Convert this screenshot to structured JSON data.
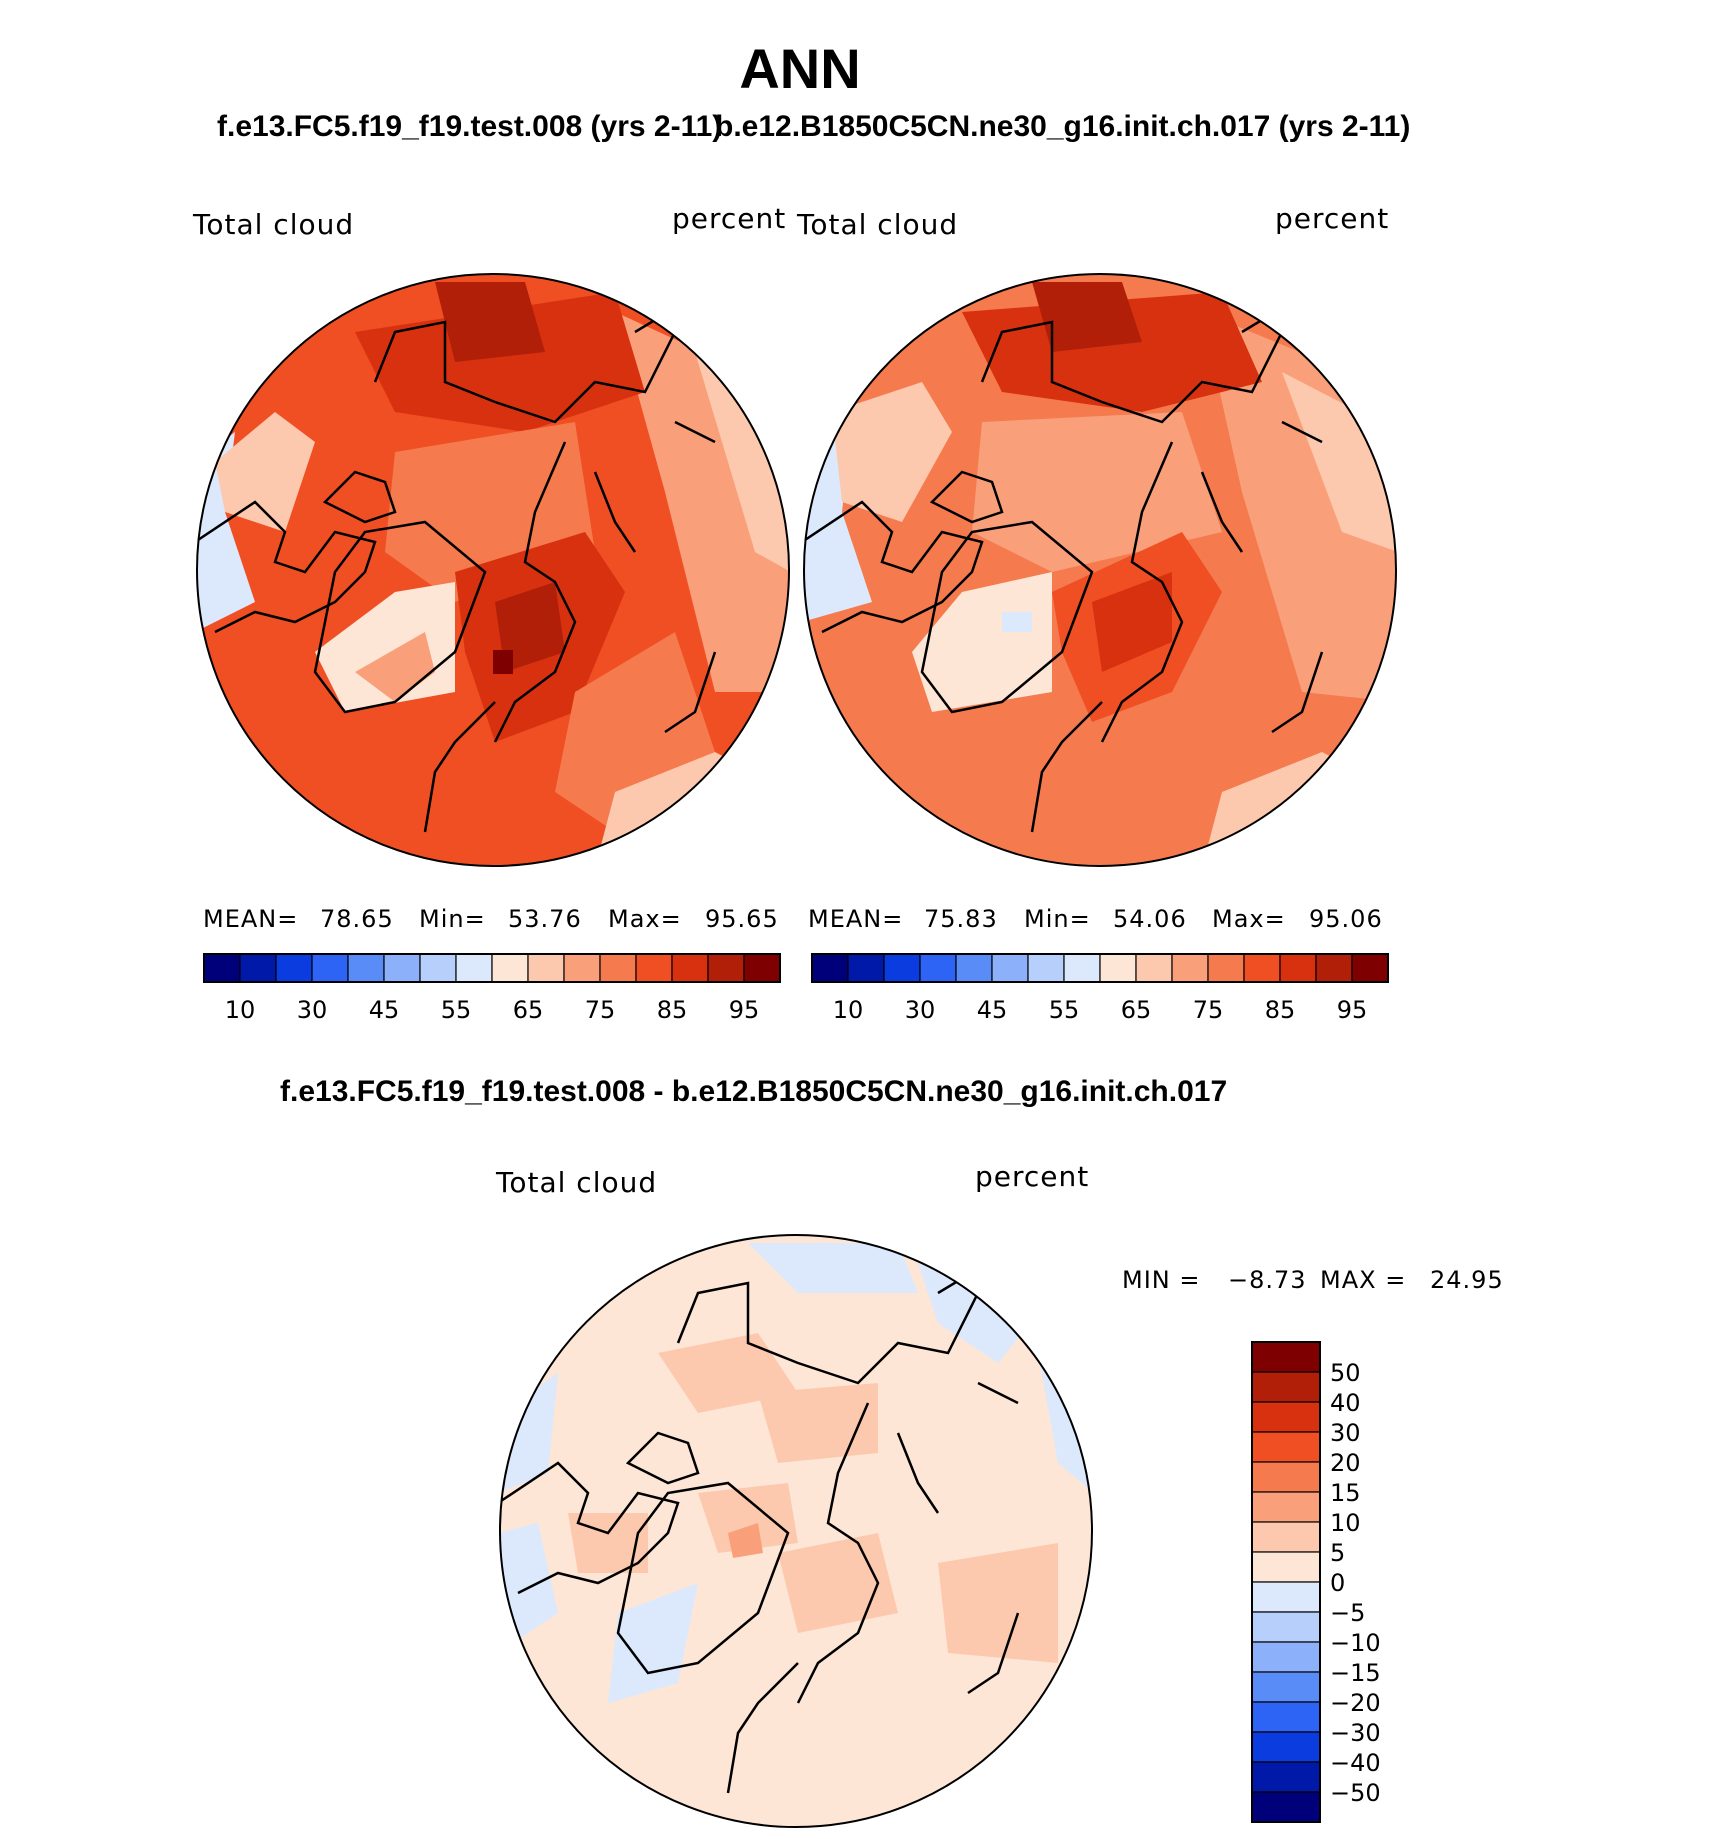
{
  "title": "ANN",
  "case1_header": "f.e13.FC5.f19_f19.test.008 (yrs 2-11)",
  "case2_header": "b.e12.B1850C5CN.ne30_g16.init.ch.017 (yrs 2-11)",
  "diff_header": "f.e13.FC5.f19_f19.test.008 - b.e12.B1850C5CN.ne30_g16.init.ch.017",
  "colors": {
    "abs_scale": [
      "#00007a",
      "#0019a8",
      "#0a3ce0",
      "#2d64f5",
      "#5a8cf8",
      "#8cb0fa",
      "#b7cffb",
      "#dce9fc",
      "#fde6d6",
      "#fcc9ae",
      "#f9a07a",
      "#f57a4e",
      "#f04e23",
      "#d8310f",
      "#b11f08",
      "#7f0000"
    ],
    "diff_scale": [
      "#00007a",
      "#0019a8",
      "#0a3ce0",
      "#2d64f5",
      "#5a8cf8",
      "#8cb0fa",
      "#b7cffb",
      "#dce9fc",
      "#fde6d6",
      "#fcc9ae",
      "#f9a07a",
      "#f57a4e",
      "#f04e23",
      "#d8310f",
      "#b11f08",
      "#7f0000"
    ]
  },
  "panels": [
    {
      "id": "case1",
      "variable": "Total cloud",
      "units": "percent",
      "mean_label": "MEAN=",
      "mean": "78.65",
      "min_label": "Min=",
      "min": "53.76",
      "max_label": "Max=",
      "max": "95.65"
    },
    {
      "id": "case2",
      "variable": "Total cloud",
      "units": "percent",
      "mean_label": "MEAN=",
      "mean": "75.83",
      "min_label": "Min=",
      "min": "54.06",
      "max_label": "Max=",
      "max": "95.06"
    }
  ],
  "diff_panel": {
    "variable": "Total cloud",
    "units": "percent",
    "min_label": "MIN =",
    "min": "−8.73",
    "max_label": "MAX =",
    "max": "24.95"
  },
  "chart_data": [
    {
      "type": "heatmap",
      "title": "f.e13.FC5.f19_f19.test.008 (yrs 2-11)",
      "variable": "Total cloud",
      "units": "percent",
      "projection": "north polar stereographic",
      "mean": 78.65,
      "min": 53.76,
      "max": 95.65,
      "colorbar_levels": [
        10,
        20,
        30,
        40,
        45,
        50,
        55,
        60,
        65,
        70,
        75,
        80,
        85,
        90,
        95
      ],
      "colorbar_tick_labels": [
        "10",
        "30",
        "45",
        "55",
        "65",
        "75",
        "85",
        "95"
      ]
    },
    {
      "type": "heatmap",
      "title": "b.e12.B1850C5CN.ne30_g16.init.ch.017 (yrs 2-11)",
      "variable": "Total cloud",
      "units": "percent",
      "projection": "north polar stereographic",
      "mean": 75.83,
      "min": 54.06,
      "max": 95.06,
      "colorbar_levels": [
        10,
        20,
        30,
        40,
        45,
        50,
        55,
        60,
        65,
        70,
        75,
        80,
        85,
        90,
        95
      ],
      "colorbar_tick_labels": [
        "10",
        "30",
        "45",
        "55",
        "65",
        "75",
        "85",
        "95"
      ]
    },
    {
      "type": "heatmap",
      "title": "f.e13.FC5.f19_f19.test.008 - b.e12.B1850C5CN.ne30_g16.init.ch.017",
      "variable": "Total cloud",
      "units": "percent",
      "projection": "north polar stereographic",
      "min": -8.73,
      "max": 24.95,
      "colorbar_levels": [
        50,
        40,
        30,
        20,
        15,
        10,
        5,
        0,
        -5,
        -10,
        -15,
        -20,
        -30,
        -40,
        -50
      ],
      "colorbar_tick_labels": [
        "50",
        "40",
        "30",
        "20",
        "15",
        "10",
        "5",
        "0",
        "−5",
        "−10",
        "−15",
        "−20",
        "−30",
        "−40",
        "−50"
      ]
    }
  ]
}
